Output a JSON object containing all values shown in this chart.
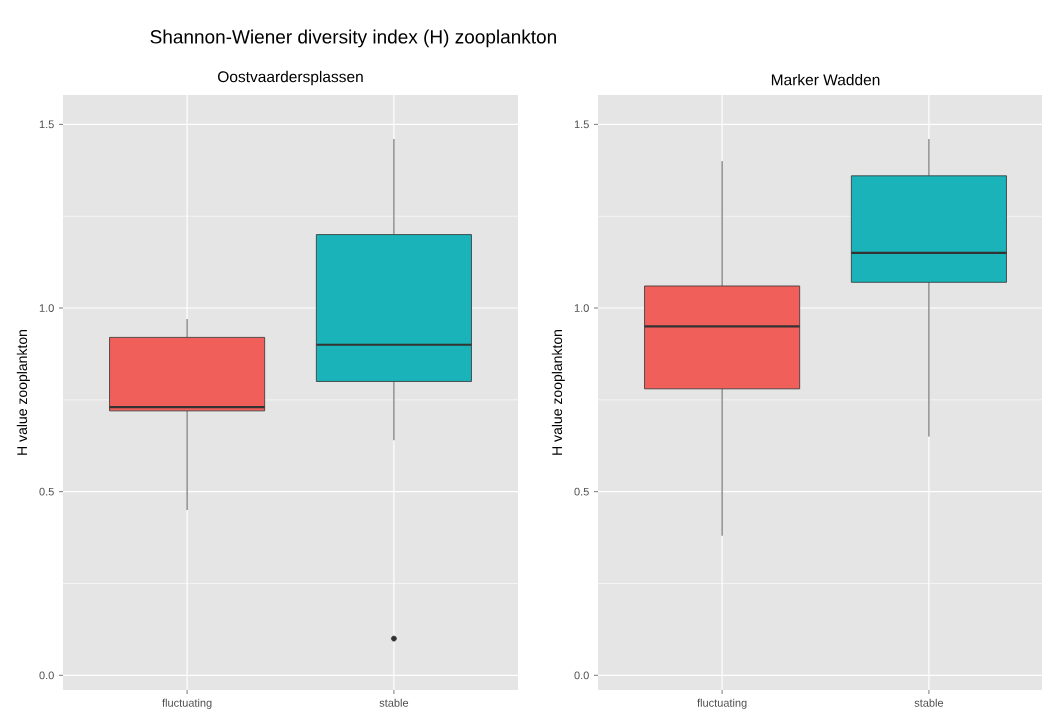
{
  "chart_data": [
    {
      "type": "box",
      "title": "Shannon-Wiener diversity index (H) zooplankton",
      "subtitle": "Oostvaardersplassen",
      "ylabel": "H value zooplankton",
      "categories": [
        "fluctuating",
        "stable"
      ],
      "colors": [
        "#f05f5a",
        "#1ab3b9"
      ],
      "boxes": [
        {
          "low": 0.45,
          "q1": 0.72,
          "median": 0.73,
          "q3": 0.92,
          "high": 0.97
        },
        {
          "low": 0.64,
          "q1": 0.8,
          "median": 0.9,
          "q3": 1.2,
          "high": 1.46,
          "outliers": [
            0.1
          ]
        }
      ],
      "ylim": [
        -0.04,
        1.58
      ],
      "yticks": [
        {
          "value": 0,
          "label": "0.0"
        },
        {
          "value": 0.5,
          "label": "0.5"
        },
        {
          "value": 1,
          "label": "1.0"
        },
        {
          "value": 1.5,
          "label": "1.5"
        }
      ],
      "grid": true
    },
    {
      "type": "box",
      "subtitle": "Marker Wadden",
      "ylabel": "H value zooplankton",
      "categories": [
        "fluctuating",
        "stable"
      ],
      "colors": [
        "#f05f5a",
        "#1ab3b9"
      ],
      "boxes": [
        {
          "low": 0.38,
          "q1": 0.78,
          "median": 0.95,
          "q3": 1.06,
          "high": 1.4
        },
        {
          "low": 0.65,
          "q1": 1.07,
          "median": 1.15,
          "q3": 1.36,
          "high": 1.46
        }
      ],
      "ylim": [
        -0.04,
        1.58
      ],
      "yticks": [
        {
          "value": 0,
          "label": "0.0"
        },
        {
          "value": 0.5,
          "label": "0.5"
        },
        {
          "value": 1,
          "label": "1.0"
        },
        {
          "value": 1.5,
          "label": "1.5"
        }
      ],
      "grid": true
    }
  ]
}
